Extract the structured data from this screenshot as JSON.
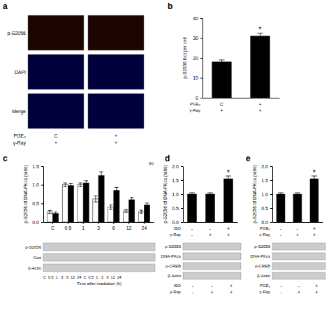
{
  "chart_data": [
    {
      "type": "image",
      "title": "a",
      "categories": [
        "p-S2056",
        "DAPI",
        "Merge"
      ],
      "colors": [
        "#1a0500",
        "#00003a",
        "#00003a"
      ],
      "conditions": [
        {
          "name": "PGE₂",
          "values": [
            "C",
            "+"
          ]
        },
        {
          "name": "γ-Ray",
          "values": [
            "+",
            "+"
          ]
        }
      ]
    },
    {
      "type": "bar",
      "title": "b",
      "values": [
        18.0,
        31.0
      ],
      "errors": [
        1.0,
        1.5
      ],
      "color": "black",
      "ylabel": "p-S2056 foci per cell",
      "ylim": [
        0,
        40
      ],
      "yticks": [
        0,
        10,
        20,
        30,
        40
      ],
      "conditions": [
        {
          "name": "PGE₂",
          "values": [
            "C",
            "+"
          ]
        },
        {
          "name": "γ-Ray",
          "values": [
            "+",
            "+"
          ]
        }
      ],
      "annotations": [
        {
          "text": "*",
          "at": 1
        }
      ]
    },
    {
      "type": "bar",
      "title": "c",
      "categories": [
        "C",
        "0.5",
        "1",
        "3",
        "6",
        "12",
        "24"
      ],
      "series": [
        {
          "color": "white",
          "values": [
            0.27,
            1.0,
            1.0,
            0.62,
            0.4,
            0.3,
            0.28
          ],
          "errors": [
            0.04,
            0.05,
            0.05,
            0.08,
            0.06,
            0.04,
            0.04
          ]
        },
        {
          "color": "black",
          "values": [
            0.23,
            0.98,
            1.05,
            1.25,
            0.85,
            0.6,
            0.46
          ],
          "errors": [
            0.04,
            0.06,
            0.06,
            0.1,
            0.08,
            0.06,
            0.05
          ]
        }
      ],
      "ylabel": "p-S2056 of DNA-PKcs (ratio)",
      "ylim": [
        0,
        1.5
      ],
      "yticks": [
        {
          "value": 0,
          "label": "0.0"
        },
        0.5,
        {
          "value": 1.0,
          "label": "1.0"
        },
        1.5
      ],
      "annotations": [
        {
          "text": "(h)"
        }
      ]
    },
    {
      "type": "blot",
      "categories": [
        "p-S2056",
        "Gαs",
        "β-Actin"
      ],
      "annotations": [
        {
          "text": "C  0.5  1   3   6  12  24  C  0.5  1   3   6  12  24"
        }
      ],
      "xlabel": "Time after irradiation (h)"
    },
    {
      "type": "bar",
      "title": "d",
      "values": [
        1.0,
        1.0,
        1.55
      ],
      "errors": [
        0.05,
        0.05,
        0.1
      ],
      "color": "black",
      "ylabel": "p-S2056 of DNA-PKcs (ratio)",
      "ylim": [
        0,
        2.0
      ],
      "yticks": [
        {
          "value": 0,
          "label": "0.0"
        },
        0.5,
        {
          "value": 1.0,
          "label": "1.0"
        },
        1.5,
        {
          "value": 2.0,
          "label": "2.0"
        }
      ],
      "conditions": [
        {
          "name": "ISO",
          "values": [
            "-",
            "-",
            "+"
          ]
        },
        {
          "name": "γ-Ray",
          "values": [
            "-",
            "+",
            "+"
          ]
        }
      ],
      "annotations": [
        {
          "text": "*",
          "at": 2
        }
      ]
    },
    {
      "type": "blot",
      "categories": [
        "p-S2056",
        "DNA-PKcs",
        "p-CREB",
        "β-Actin"
      ],
      "conditions": [
        {
          "name": "ISO",
          "values": [
            "-",
            "-",
            "+"
          ]
        },
        {
          "name": "γ-Ray",
          "values": [
            "-",
            "+",
            "+"
          ]
        }
      ]
    },
    {
      "type": "bar",
      "title": "e",
      "values": [
        1.0,
        1.0,
        1.55
      ],
      "errors": [
        0.05,
        0.05,
        0.1
      ],
      "color": "black",
      "ylabel": "p-S2056 of DNA-PKcs (ratio)",
      "ylim": [
        0,
        2.0
      ],
      "yticks": [
        {
          "value": 0,
          "label": "0.0"
        },
        0.5,
        {
          "value": 1.0,
          "label": "1.0"
        },
        1.5,
        {
          "value": 2.0,
          "label": "2.0"
        }
      ],
      "conditions": [
        {
          "name": "PGE₂",
          "values": [
            "-",
            "-",
            "+"
          ]
        },
        {
          "name": "γ-Ray",
          "values": [
            "-",
            "+",
            "+"
          ]
        }
      ],
      "annotations": [
        {
          "text": "*",
          "at": 2
        }
      ]
    },
    {
      "type": "blot",
      "categories": [
        "p-S2056",
        "DNA-PKcs",
        "p-CREB",
        "β-Actin"
      ],
      "conditions": [
        {
          "name": "PGE₂",
          "values": [
            "-",
            "-",
            "+"
          ]
        },
        {
          "name": "γ-Ray",
          "values": [
            "-",
            "+",
            "+"
          ]
        }
      ]
    }
  ]
}
